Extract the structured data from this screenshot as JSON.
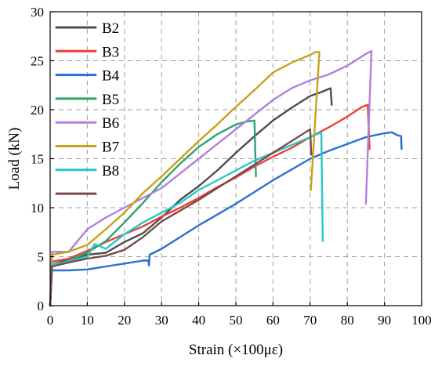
{
  "chart_data": {
    "type": "line",
    "xlabel": "Strain (×100με)",
    "ylabel": "Load (kN)",
    "xlim": [
      0,
      100
    ],
    "ylim": [
      0,
      30
    ],
    "xticks": [
      "0",
      "10",
      "20",
      "30",
      "40",
      "50",
      "60",
      "70",
      "80",
      "90",
      "100"
    ],
    "yticks": [
      "0",
      "5",
      "10",
      "15",
      "20",
      "25",
      "30"
    ],
    "grid": true,
    "legend_position": "top-left",
    "series": [
      {
        "name": "B2",
        "color": "#4d4d4d",
        "points": [
          [
            0,
            0
          ],
          [
            0.5,
            4.2
          ],
          [
            5,
            4.7
          ],
          [
            10,
            5.2
          ],
          [
            15,
            5.4
          ],
          [
            20,
            6.5
          ],
          [
            25,
            7.4
          ],
          [
            30,
            9
          ],
          [
            35,
            10.8
          ],
          [
            40,
            12.2
          ],
          [
            45,
            13.8
          ],
          [
            50,
            15.6
          ],
          [
            55,
            17.3
          ],
          [
            60,
            18.9
          ],
          [
            65,
            20.2
          ],
          [
            70,
            21.4
          ],
          [
            73,
            21.8
          ],
          [
            75.5,
            22.2
          ],
          [
            75.8,
            20.5
          ]
        ]
      },
      {
        "name": "B3",
        "color": "#e8403a",
        "points": [
          [
            0,
            0
          ],
          [
            0.5,
            4.5
          ],
          [
            5,
            4.8
          ],
          [
            10,
            5.6
          ],
          [
            15,
            6.5
          ],
          [
            20,
            7.3
          ],
          [
            25,
            8.1
          ],
          [
            30,
            9.1
          ],
          [
            35,
            10
          ],
          [
            40,
            11
          ],
          [
            45,
            12.1
          ],
          [
            50,
            13.1
          ],
          [
            55,
            14.2
          ],
          [
            60,
            15.2
          ],
          [
            65,
            16.1
          ],
          [
            70,
            17.2
          ],
          [
            75,
            18.2
          ],
          [
            80,
            19.3
          ],
          [
            84,
            20.3
          ],
          [
            85.5,
            20.5
          ],
          [
            86,
            16
          ]
        ]
      },
      {
        "name": "B4",
        "color": "#2a6fd4",
        "points": [
          [
            0,
            0
          ],
          [
            0.5,
            3.6
          ],
          [
            5,
            3.6
          ],
          [
            10,
            3.7
          ],
          [
            15,
            4
          ],
          [
            20,
            4.3
          ],
          [
            25,
            4.6
          ],
          [
            26.5,
            4.6
          ],
          [
            26.6,
            4.1
          ],
          [
            26.8,
            5.2
          ],
          [
            30,
            5.8
          ],
          [
            35,
            7
          ],
          [
            40,
            8.2
          ],
          [
            45,
            9.3
          ],
          [
            50,
            10.4
          ],
          [
            55,
            11.6
          ],
          [
            60,
            12.8
          ],
          [
            65,
            13.9
          ],
          [
            70,
            15
          ],
          [
            75,
            15.8
          ],
          [
            80,
            16.5
          ],
          [
            85,
            17.2
          ],
          [
            90,
            17.6
          ],
          [
            92,
            17.7
          ],
          [
            93.5,
            17.4
          ],
          [
            94.5,
            17.3
          ],
          [
            94.6,
            16
          ]
        ]
      },
      {
        "name": "B5",
        "color": "#2fa36b",
        "points": [
          [
            0,
            0
          ],
          [
            0.5,
            4
          ],
          [
            5,
            4.6
          ],
          [
            10,
            5.4
          ],
          [
            15,
            6.6
          ],
          [
            20,
            8.5
          ],
          [
            25,
            10.5
          ],
          [
            30,
            12.6
          ],
          [
            35,
            14.5
          ],
          [
            40,
            16.2
          ],
          [
            45,
            17.5
          ],
          [
            50,
            18.5
          ],
          [
            53,
            18.8
          ],
          [
            55,
            18.9
          ],
          [
            55.4,
            13.2
          ]
        ]
      },
      {
        "name": "B6",
        "color": "#b07fe0",
        "points": [
          [
            0,
            0
          ],
          [
            0.5,
            5.5
          ],
          [
            5,
            5.5
          ],
          [
            10,
            7.8
          ],
          [
            15,
            9
          ],
          [
            20,
            10
          ],
          [
            25,
            11
          ],
          [
            30,
            12
          ],
          [
            35,
            13.5
          ],
          [
            40,
            15
          ],
          [
            45,
            16.5
          ],
          [
            50,
            18
          ],
          [
            55,
            19.5
          ],
          [
            60,
            21
          ],
          [
            65,
            22.2
          ],
          [
            70,
            23
          ],
          [
            75,
            23.6
          ],
          [
            80,
            24.5
          ],
          [
            85,
            25.7
          ],
          [
            86.5,
            26
          ],
          [
            85,
            10.4
          ]
        ]
      },
      {
        "name": "B7",
        "color": "#c9a21a",
        "points": [
          [
            0,
            0
          ],
          [
            0.5,
            5.2
          ],
          [
            5,
            5.5
          ],
          [
            10,
            6.2
          ],
          [
            15,
            7.8
          ],
          [
            20,
            9.5
          ],
          [
            25,
            11.5
          ],
          [
            30,
            13.2
          ],
          [
            35,
            15
          ],
          [
            40,
            16.8
          ],
          [
            45,
            18.5
          ],
          [
            50,
            20.3
          ],
          [
            55,
            22
          ],
          [
            60,
            23.8
          ],
          [
            65,
            24.8
          ],
          [
            70,
            25.6
          ],
          [
            71.5,
            25.9
          ],
          [
            72.5,
            25.9
          ],
          [
            70.2,
            11.8
          ]
        ]
      },
      {
        "name": "B8",
        "color": "#28c6c6",
        "points": [
          [
            0,
            0
          ],
          [
            0.5,
            4.2
          ],
          [
            5,
            4.5
          ],
          [
            10,
            5
          ],
          [
            12,
            6.3
          ],
          [
            15,
            5.8
          ],
          [
            20,
            7.3
          ],
          [
            25,
            8.5
          ],
          [
            30,
            9.5
          ],
          [
            35,
            10.5
          ],
          [
            40,
            11.8
          ],
          [
            45,
            12.8
          ],
          [
            50,
            13.8
          ],
          [
            55,
            14.8
          ],
          [
            60,
            15.6
          ],
          [
            65,
            16.4
          ],
          [
            70,
            17.2
          ],
          [
            73,
            17.7
          ],
          [
            73.4,
            6.6
          ]
        ]
      },
      {
        "name": "",
        "color": "#7a4a4a",
        "points": [
          [
            0,
            0
          ],
          [
            0.5,
            4
          ],
          [
            5,
            4.4
          ],
          [
            10,
            4.8
          ],
          [
            15,
            5.1
          ],
          [
            20,
            5.7
          ],
          [
            25,
            7
          ],
          [
            30,
            8.6
          ],
          [
            35,
            9.7
          ],
          [
            40,
            10.8
          ],
          [
            45,
            12
          ],
          [
            50,
            13.2
          ],
          [
            55,
            14.4
          ],
          [
            60,
            15.6
          ],
          [
            65,
            16.8
          ],
          [
            70,
            18
          ],
          [
            70.3,
            15.4
          ]
        ]
      }
    ]
  }
}
